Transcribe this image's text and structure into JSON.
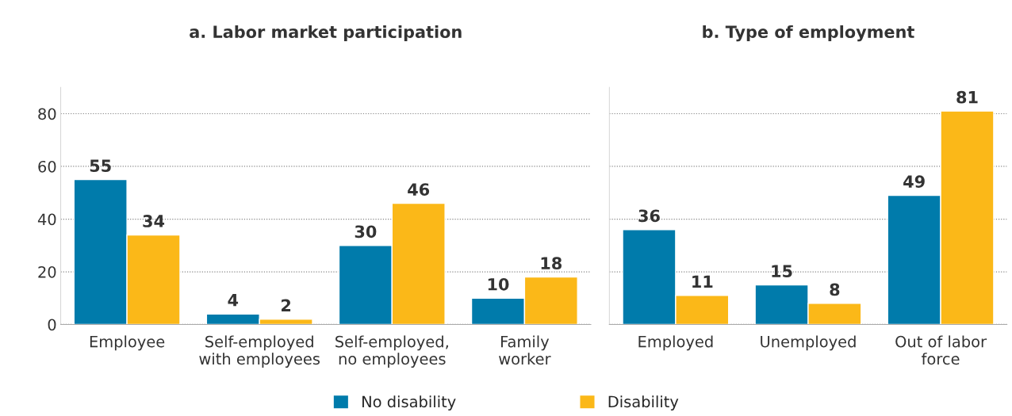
{
  "chart_data": [
    {
      "type": "bar",
      "title": "a. Labor market participation",
      "categories": [
        "Employee",
        "Self-employed\nwith employees",
        "Self-employed,\nno employees",
        "Family\nworker"
      ],
      "series": [
        {
          "name": "No disability",
          "color": "#007bab",
          "values": [
            55,
            4,
            30,
            10
          ]
        },
        {
          "name": "Disability",
          "color": "#fbb818",
          "values": [
            34,
            2,
            46,
            18
          ]
        }
      ],
      "ylim": [
        0,
        90
      ],
      "yticks": [
        0,
        20,
        40,
        60,
        80
      ],
      "grid": "y",
      "data_labels": true,
      "legend": "bottom"
    },
    {
      "type": "bar",
      "title": "b. Type of employment",
      "categories": [
        "Employed",
        "Unemployed",
        "Out of labor\nforce"
      ],
      "series": [
        {
          "name": "No disability",
          "color": "#007bab",
          "values": [
            36,
            15,
            49
          ]
        },
        {
          "name": "Disability",
          "color": "#fbb818",
          "values": [
            11,
            8,
            81
          ]
        }
      ],
      "ylim": [
        0,
        90
      ],
      "yticks": [
        0,
        20,
        40,
        60,
        80
      ],
      "grid": "y",
      "data_labels": true,
      "legend": "bottom",
      "tick_labels": "x"
    }
  ]
}
